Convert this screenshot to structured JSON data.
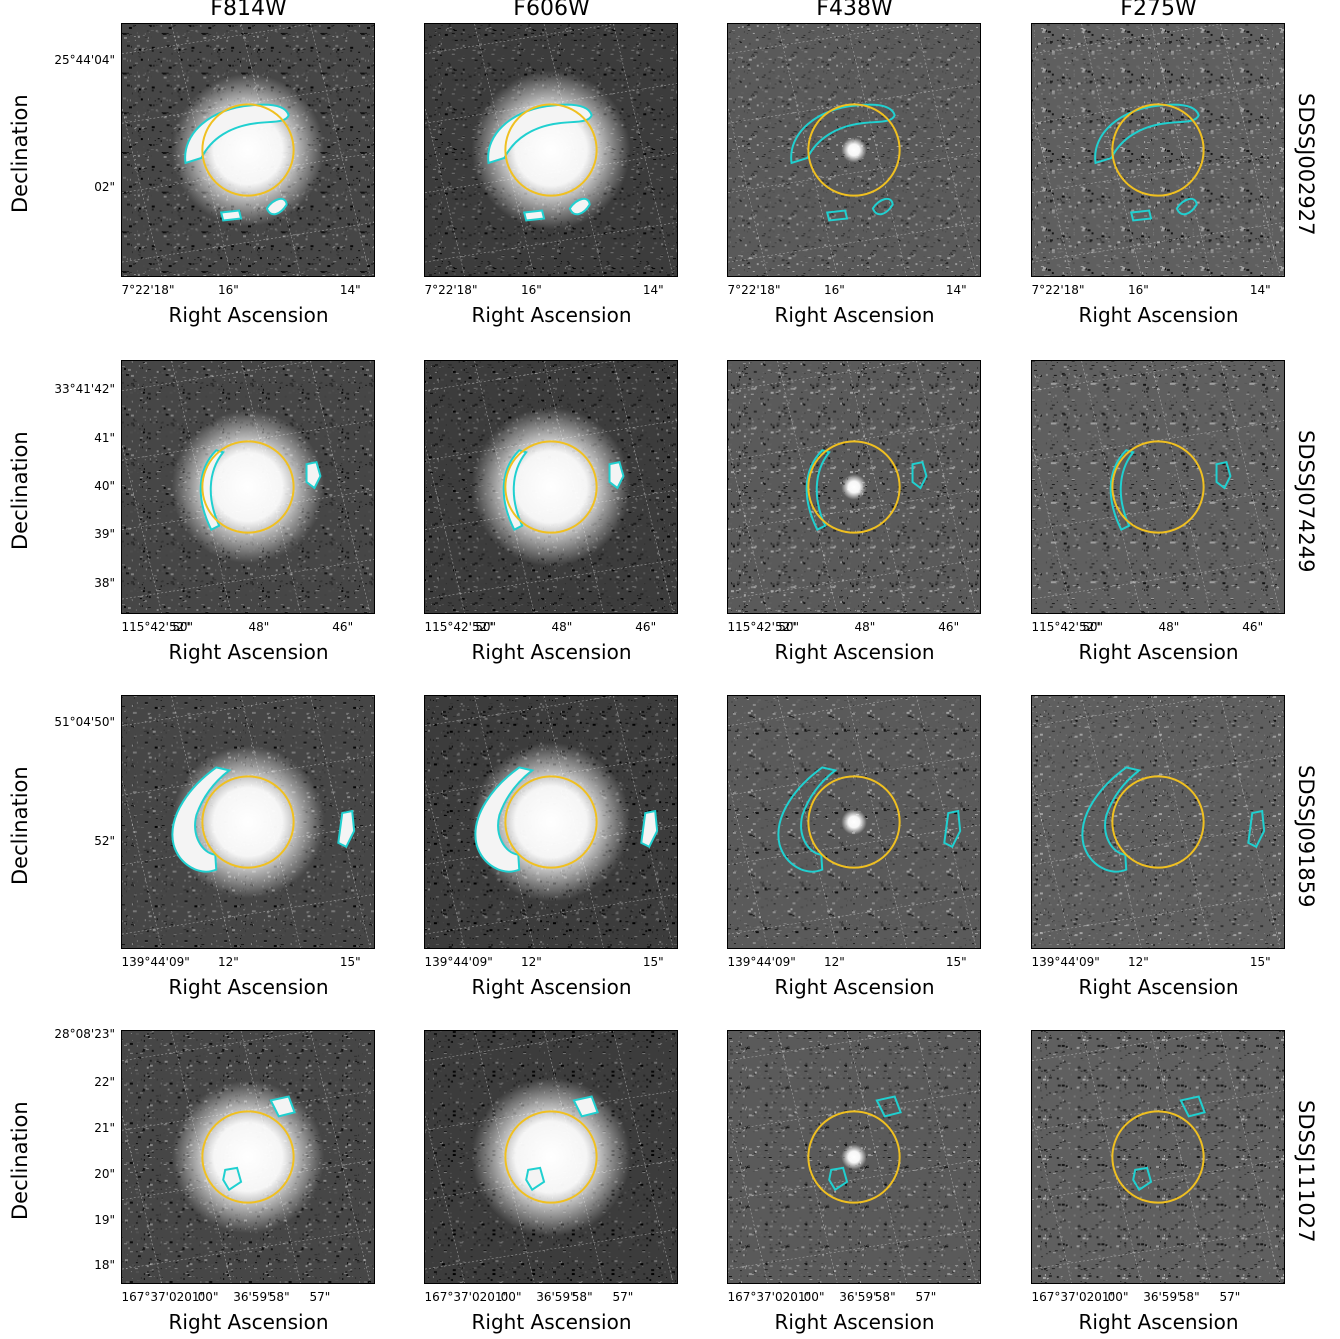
{
  "figure": {
    "columns": [
      "F814W",
      "F606W",
      "F438W",
      "F275W"
    ],
    "x_axis_label": "Right Ascension",
    "y_axis_label": "Declination",
    "rows": [
      {
        "target": "SDSSJ002927",
        "ra_ticks": [
          "7°22'18\"",
          "16\"",
          "14\""
        ],
        "dec_ticks": [
          "25°44'04\"",
          "02\""
        ]
      },
      {
        "target": "SDSSJ074249",
        "ra_ticks": [
          "115°42'52\"",
          "50\"",
          "48\"",
          "46\""
        ],
        "dec_ticks": [
          "33°41'42\"",
          "41\"",
          "40\"",
          "39\"",
          "38\""
        ]
      },
      {
        "target": "SDSSJ091859",
        "ra_ticks": [
          "139°44'09\"",
          "12\"",
          "15\""
        ],
        "dec_ticks": [
          "51°04'50\"",
          "52\""
        ]
      },
      {
        "target": "SDSSJ111027",
        "ra_ticks": [
          "167°37'0201\"",
          "00\"",
          "36'59\"",
          "58\"",
          "57\""
        ],
        "dec_ticks": [
          "28°08'23\"",
          "22\"",
          "21\"",
          "20\"",
          "19\"",
          "18\""
        ]
      }
    ],
    "colors": {
      "lens_circle": "#f0c020",
      "arc_contour": "#20d0d0"
    }
  }
}
